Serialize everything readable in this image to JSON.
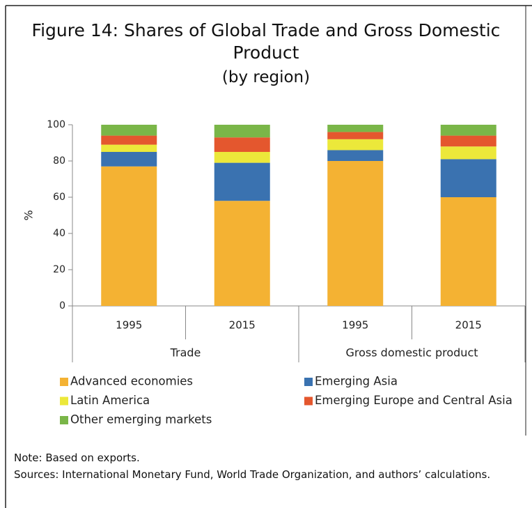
{
  "chart_data": {
    "type": "stacked_bar",
    "title": "Figure 14: Shares of Global Trade and Gross Domestic Product",
    "subtitle": "(by region)",
    "ylabel": "%",
    "categories": [
      "1995",
      "2015",
      "1995",
      "2015"
    ],
    "groups": [
      {
        "name": "Trade",
        "size": 2
      },
      {
        "name": "Gross domestic product",
        "size": 2
      }
    ],
    "series": [
      {
        "name": "Advanced economies",
        "color": "#f4b233",
        "values": [
          77,
          58,
          80,
          60
        ]
      },
      {
        "name": "Emerging Asia",
        "color": "#3a72b0",
        "values": [
          8,
          21,
          6,
          21
        ]
      },
      {
        "name": "Latin America",
        "color": "#ece83a",
        "values": [
          4,
          6,
          6,
          7
        ]
      },
      {
        "name": "Emerging Europe and Central Asia",
        "color": "#e4572e",
        "values": [
          5,
          8,
          4,
          6
        ]
      },
      {
        "name": "Other emerging markets",
        "color": "#7ab648",
        "values": [
          6,
          7,
          4,
          6
        ]
      }
    ],
    "ylim": [
      0,
      100
    ],
    "yticks": [
      0,
      20,
      40,
      60,
      80,
      100
    ],
    "grid": false,
    "notes": [
      "Note: Based on exports.",
      "Sources: International Monetary Fund, World Trade Organization, and authors’ calculations."
    ]
  }
}
